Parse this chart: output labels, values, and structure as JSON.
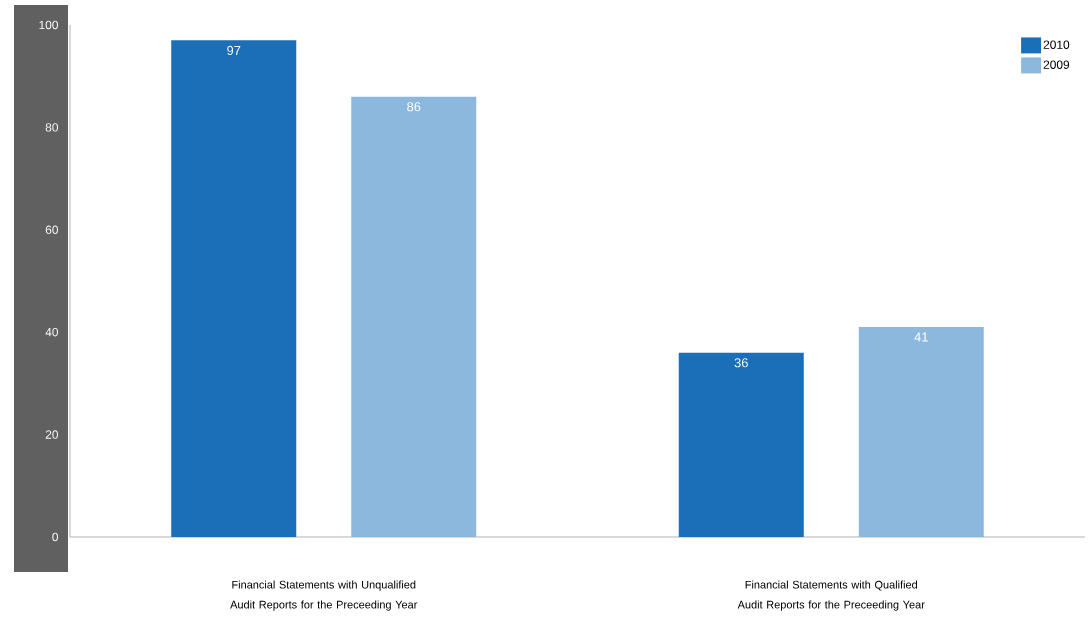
{
  "chart_data": {
    "type": "bar",
    "categories": [
      "Financial Statements with Unqualified Audit Reports for the Preceeding Year",
      "Financial Statements with Qualified Audit Reports for the Preceeding Year"
    ],
    "series": [
      {
        "name": "2010",
        "color": "#1a6fb8",
        "values": [
          97,
          36
        ]
      },
      {
        "name": "2009",
        "color": "#8db8dd",
        "values": [
          86,
          41
        ]
      }
    ],
    "ylim": [
      0,
      100
    ],
    "yticks": [
      0,
      20,
      40,
      60,
      80,
      100
    ],
    "data_labels": true,
    "legend": "top right"
  }
}
